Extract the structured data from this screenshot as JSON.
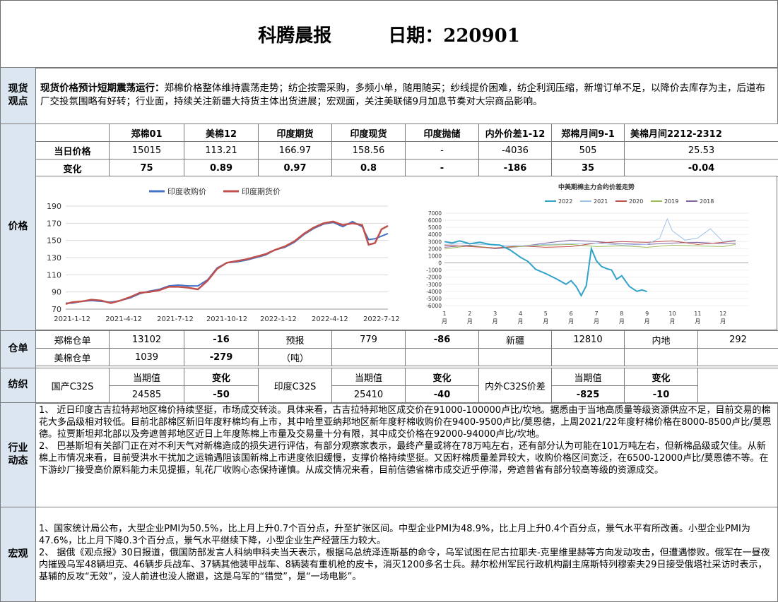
{
  "header": {
    "title": "科腾晨报",
    "date_label": "日期：220901"
  },
  "spot": {
    "section": "现货\n观点",
    "lead": "现货价格预计短期震荡运行：",
    "text": "郑棉价格整体维持震荡走势；纺企按需采购，多频小单，随用随买；纱线提价困难，纺企利润压缩，新增订单不足，以降价去库存为主，后道布厂交投氛围略有好转；行业面，持续关注新疆大持货主体出货进展；宏观面，关注美联储9月加息节奏对大宗商品影响。"
  },
  "price": {
    "section": "价格",
    "headers": [
      "",
      "郑棉01",
      "美棉12",
      "印度期货",
      "印度现货",
      "印度抛储",
      "内外价差1-12",
      "郑棉月间9-1",
      "美棉月间2212-2312"
    ],
    "rows": [
      [
        "当日价格",
        "15015",
        "113.21",
        "166.97",
        "158.56",
        "-",
        "-4036",
        "505",
        "25.53"
      ],
      [
        "变化",
        "75",
        "0.89",
        "0.97",
        "0.8",
        "-",
        "-186",
        "35",
        "-0.04"
      ]
    ]
  },
  "chart_data": [
    {
      "type": "line",
      "title": "",
      "legend": [
        "印度收购价",
        "印度期货价"
      ],
      "legend_position": "top",
      "xlabels": [
        "2021-1-12",
        "2021-4-12",
        "2021-7-12",
        "2021-10-12",
        "2022-1-12",
        "2022-4-12",
        "2022-7-12"
      ],
      "ylim": [
        70,
        190
      ],
      "yticks": [
        70,
        90,
        110,
        130,
        150,
        170,
        190
      ],
      "grid": true,
      "colors": [
        "#4472c4",
        "#c0504d"
      ],
      "series": [
        {
          "name": "印度收购价",
          "x": [
            0,
            0.02,
            0.05,
            0.08,
            0.11,
            0.14,
            0.17,
            0.2,
            0.23,
            0.26,
            0.29,
            0.32,
            0.35,
            0.38,
            0.41,
            0.44,
            0.47,
            0.5,
            0.53,
            0.56,
            0.59,
            0.62,
            0.65,
            0.68,
            0.71,
            0.74,
            0.77,
            0.8,
            0.83,
            0.86,
            0.89,
            0.92,
            0.94,
            0.96,
            0.98,
            1.0
          ],
          "values": [
            77,
            77,
            79,
            80,
            79,
            78,
            80,
            83,
            88,
            91,
            93,
            97,
            98,
            97,
            97,
            104,
            118,
            124,
            125,
            127,
            130,
            133,
            139,
            142,
            148,
            157,
            164,
            169,
            171,
            166,
            172,
            166,
            151,
            152,
            155,
            158
          ]
        },
        {
          "name": "印度期货价",
          "x": [
            0,
            0.02,
            0.05,
            0.08,
            0.11,
            0.14,
            0.17,
            0.2,
            0.23,
            0.26,
            0.29,
            0.32,
            0.35,
            0.38,
            0.41,
            0.44,
            0.47,
            0.5,
            0.53,
            0.56,
            0.59,
            0.62,
            0.65,
            0.68,
            0.71,
            0.74,
            0.77,
            0.8,
            0.83,
            0.86,
            0.89,
            0.92,
            0.94,
            0.96,
            0.98,
            1.0
          ],
          "values": [
            76,
            78,
            79,
            81,
            80,
            77,
            80,
            84,
            89,
            90,
            92,
            96,
            96,
            95,
            93,
            103,
            117,
            124,
            126,
            128,
            131,
            134,
            139,
            143,
            149,
            158,
            165,
            170,
            172,
            168,
            170,
            168,
            145,
            147,
            163,
            167
          ]
        }
      ]
    },
    {
      "type": "line",
      "title": "中美期棉主力合约价差走势",
      "legend": [
        "2022",
        "2021",
        "2020",
        "2019",
        "2018"
      ],
      "legend_position": "top",
      "xlabels": [
        "1月",
        "2月",
        "3月",
        "4月",
        "5月",
        "6月",
        "7月",
        "8月",
        "9月",
        "10月",
        "11月",
        "12月"
      ],
      "ylim": [
        -6000,
        7000
      ],
      "yticks": [
        7000,
        6000,
        5000,
        4000,
        3000,
        2000,
        1000,
        0,
        -1000,
        -2000,
        -3000,
        -4000,
        -5000,
        -6000
      ],
      "grid": true,
      "colors": [
        "#31a2c8",
        "#9dc3e6",
        "#c0504d",
        "#9bbb59",
        "#8064a2"
      ],
      "series": [
        {
          "name": "2022",
          "x": [
            1,
            1.3,
            1.6,
            2,
            2.4,
            2.8,
            3.2,
            3.6,
            4,
            4.3,
            4.6,
            5,
            5.4,
            5.8,
            6,
            6.2,
            6.4,
            6.6,
            6.8,
            7,
            7.2,
            7.4,
            7.6,
            7.8,
            8,
            8.3,
            8.6,
            8.8,
            9
          ],
          "values": [
            3000,
            2800,
            3100,
            2700,
            2900,
            2600,
            2500,
            1800,
            800,
            200,
            -900,
            -1500,
            -2200,
            -3000,
            -2500,
            -3300,
            -4600,
            -3200,
            2000,
            300,
            -500,
            -800,
            -1000,
            -2300,
            -1800,
            -3300,
            -4000,
            -3800,
            -4036
          ]
        },
        {
          "name": "2021",
          "x": [
            1,
            2,
            3,
            4,
            5,
            6,
            7,
            8,
            9,
            9.5,
            9.8,
            10,
            10.5,
            11,
            11.5,
            12,
            12.5
          ],
          "values": [
            2600,
            2700,
            2500,
            2400,
            2600,
            2700,
            2800,
            2500,
            2600,
            3500,
            6200,
            4500,
            3200,
            3500,
            4800,
            3000,
            3200
          ]
        },
        {
          "name": "2020",
          "x": [
            1,
            2,
            3,
            4,
            5,
            6,
            7,
            8,
            9,
            10,
            11,
            12,
            12.5
          ],
          "values": [
            2500,
            2300,
            2100,
            2400,
            2200,
            2300,
            2800,
            3000,
            2900,
            3100,
            2600,
            2900,
            3100
          ]
        },
        {
          "name": "2019",
          "x": [
            1,
            2,
            3,
            4,
            5,
            6,
            7,
            8,
            9,
            10,
            11,
            12,
            12.5
          ],
          "values": [
            2000,
            2400,
            2100,
            2300,
            2500,
            2600,
            2300,
            2400,
            2200,
            2500,
            2400,
            2300,
            2600
          ]
        },
        {
          "name": "2018",
          "x": [
            1,
            2,
            3,
            4,
            5,
            6,
            7,
            8,
            9,
            10,
            11,
            12,
            12.5
          ],
          "values": [
            2200,
            2500,
            2000,
            2300,
            2800,
            3200,
            3000,
            2700,
            2600,
            2800,
            2900,
            2700,
            2800
          ]
        }
      ]
    }
  ],
  "warehouse": {
    "section": "仓单",
    "row1": [
      "郑棉仓单",
      "13102",
      "-16",
      "预报",
      "779",
      "-86",
      "新疆",
      "12810",
      "内地",
      "292"
    ],
    "row2": [
      "美棉仓单",
      "1039",
      "-279",
      "（吨）"
    ]
  },
  "textile": {
    "section": "纺织",
    "col_current": "当期值",
    "col_change": "变化",
    "domestic_label": "国产C32S",
    "domestic_value": "24585",
    "domestic_change": "-50",
    "india_label": "印度C32S",
    "india_value": "25410",
    "india_change": "-40",
    "spread_label": "内外C32S价差",
    "spread_value": "-825",
    "spread_change": "-10"
  },
  "industry": {
    "section": "行业\n动态",
    "p1": "1、 近日印度古吉拉特邦地区棉价持续坚挺，市场成交转淡。具体来看，古吉拉特邦地区成交价在91000-100000卢比/坎地。据悉由于当地高质量等级资源供应不足，目前交易的棉花大多品级相对较低。目前北部棉区新旧年度籽棉均有上市，其中哈里亚纳邦地区新年度籽棉收购价在9400-9500卢比/莫恩德，上周2021/22年度籽棉价格在8000-8500卢比/莫恩德。拉贾斯坦邦北部以及旁遮普邦地区近日上年度陈棉上市量及交易量十分有限，其中成交价格在92000-94000卢比/坎地。",
    "p2": "2、 巴基斯坦有关部门正在对不利天气对新棉造成的损失进行评估，有部分观察家表示，最终产量或将在78万吨左右，还有部分认为可能在101万吨左右，但新棉品级或欠佳。从新棉上市情况来看，目前受洪水干扰加之运输遇阻该国新棉上市进度依旧缓慢，支撑价格持续坚挺。又因籽棉质量差异较大，收购价格区间宽泛，在6500-12000卢比/莫恩德不等。在下游纱厂接受高价原料能力未见提振，轧花厂收购心态保持谨慎。从成交情况来看，目前信德省棉市成交近乎停滞，旁遮普省有部分较高等级的资源成交。"
  },
  "macro": {
    "section": "宏观",
    "p1": "1、国家统计局公布，大型企业PMI为50.5%，比上月上升0.7个百分点，升至扩张区间。中型企业PMI为48.9%，比上月上升0.4个百分点，景气水平有所改善。小型企业PMI为47.6%，比上月下降0.3个百分点，景气水平继续下降，小型企业生产经营压力较大。",
    "p2": "2、 据俄《观点报》30日报道，俄国防部发言人科纳申科夫当天表示，根据乌总统泽连斯基的命令，乌军试图在尼古拉耶夫-克里维里赫等方向发动攻击，但遭遇惨败。俄军在一昼夜内摧毁乌军48辆坦克、46辆步兵战车、37辆其他装甲战车、8辆装有重机枪的皮卡，消灭1200多名士兵。赫尔松州军民行政机构副主席斯特列穆索夫29日接受俄塔社采访时表示，基辅的反攻“无效”，没人前进也没人撤退，这是乌军的“错觉”，是“一场电影”。"
  }
}
